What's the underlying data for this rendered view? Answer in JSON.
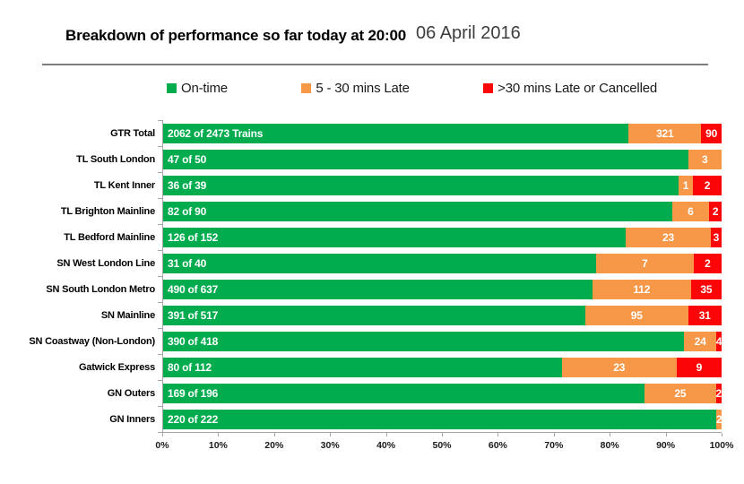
{
  "header": {
    "title": "Breakdown of performance so far today at 20:00",
    "date": "06 April 2016"
  },
  "colors": {
    "on_time": "#00AC4E",
    "late": "#F79748",
    "cancelled": "#FB0507",
    "axis": "#A6A6A6",
    "divider": "#7F7F7F"
  },
  "legend": {
    "items": [
      {
        "label": "On-time",
        "color": "#00AC4E"
      },
      {
        "label": "5 - 30 mins Late",
        "color": "#F79748"
      },
      {
        "label": ">30 mins Late or Cancelled",
        "color": "#FB0507"
      }
    ]
  },
  "chart_data": {
    "type": "bar",
    "orientation": "horizontal",
    "stacked": true,
    "title": "Breakdown of performance so far today at 20:00",
    "subtitle": "06 April 2016",
    "categories": [
      "GTR Total",
      "TL South London",
      "TL Kent Inner",
      "TL Brighton Mainline",
      "TL Bedford Mainline",
      "SN West London Line",
      "SN South London Metro",
      "SN Mainline",
      "SN Coastway (Non-London)",
      "Gatwick Express",
      "GN Outers",
      "GN Inners"
    ],
    "totals": [
      2473,
      50,
      39,
      90,
      152,
      40,
      637,
      517,
      418,
      112,
      196,
      222
    ],
    "series": [
      {
        "name": "On-time",
        "color": "#00AC4E",
        "values": [
          2062,
          47,
          36,
          82,
          126,
          31,
          490,
          391,
          390,
          80,
          169,
          220
        ],
        "labels": [
          "2062 of 2473 Trains",
          "47 of 50",
          "36 of 39",
          "82 of 90",
          "126 of 152",
          "31 of 40",
          "490 of 637",
          "391 of 517",
          "390 of 418",
          "80 of 112",
          "169 of 196",
          "220 of 222"
        ]
      },
      {
        "name": "5 - 30 mins Late",
        "color": "#F79748",
        "values": [
          321,
          3,
          1,
          6,
          23,
          7,
          112,
          95,
          24,
          23,
          25,
          2
        ]
      },
      {
        "name": ">30 mins Late or Cancelled",
        "color": "#FB0507",
        "values": [
          90,
          0,
          2,
          2,
          3,
          2,
          35,
          31,
          4,
          9,
          2,
          0
        ]
      }
    ],
    "x_ticks": [
      "0%",
      "10%",
      "20%",
      "30%",
      "40%",
      "50%",
      "60%",
      "70%",
      "80%",
      "90%",
      "100%"
    ],
    "xlim": [
      0,
      100
    ],
    "grid": false,
    "legend_position": "top"
  }
}
